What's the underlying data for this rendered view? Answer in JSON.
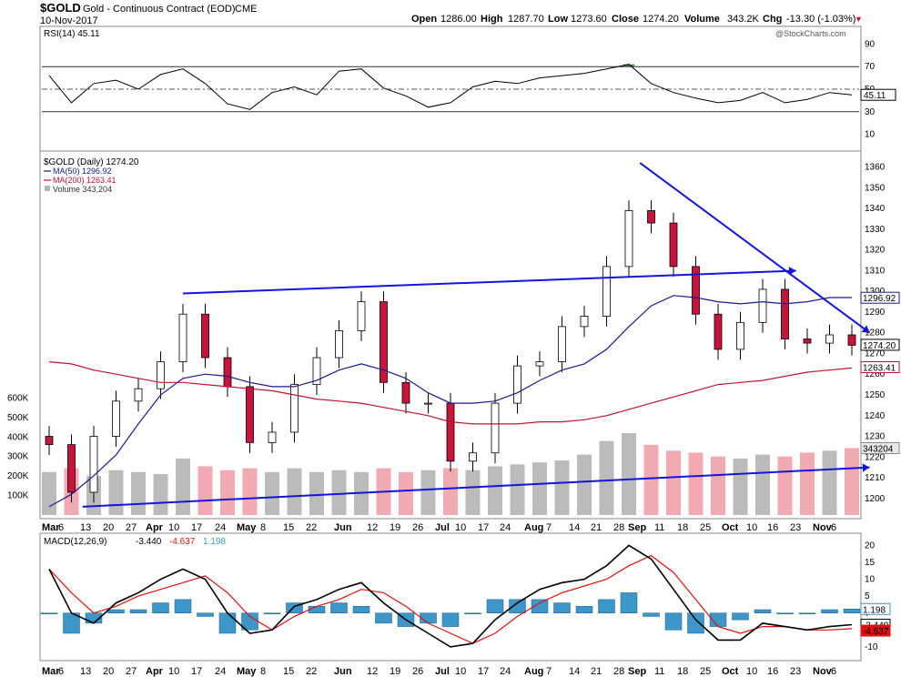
{
  "header": {
    "symbol": "$GOLD",
    "description": "Gold - Continuous Contract (EOD)",
    "exchange": "CME",
    "date": "10-Nov-2017",
    "open_label": "Open",
    "open": "1286.00",
    "high_label": "High",
    "high": "1287.70",
    "low_label": "Low",
    "low": "1273.60",
    "close_label": "Close",
    "close": "1274.20",
    "volume_label": "Volume",
    "volume": "343.2K",
    "chg_label": "Chg",
    "chg": "-13.30 (-1.03%)",
    "chg_arrow": "▼",
    "watermark": "@StockCharts.com"
  },
  "colors": {
    "ma50": "#1a1a8c",
    "ma200": "#c0142f",
    "up": "#ffffff",
    "down": "#c8143c",
    "trend": "#1414dc",
    "hist": "#3c96c8",
    "signal": "#e01010",
    "rsi_fill": "#4a7a4a",
    "vol_up": "#b4b4b4",
    "vol_down": "#f0a0aa"
  },
  "chart_data": [
    {
      "type": "line",
      "name": "rsi-panel",
      "legend": "RSI(14) 45.11",
      "last_value_label": "45.11",
      "ylim": [
        0,
        100
      ],
      "y_ticks": [
        "90",
        "70",
        "50",
        "30",
        "10"
      ],
      "reference_lines": [
        70,
        30
      ],
      "x": [
        "Mar 6",
        "Mar 13",
        "Mar 20",
        "Mar 27",
        "Apr 3",
        "Apr 10",
        "Apr 17",
        "Apr 24",
        "May 1",
        "May 8",
        "May 15",
        "May 22",
        "May 29",
        "Jun 5",
        "Jun 12",
        "Jun 19",
        "Jun 26",
        "Jul 3",
        "Jul 10",
        "Jul 17",
        "Jul 24",
        "Jul 31",
        "Aug 7",
        "Aug 14",
        "Aug 21",
        "Aug 28",
        "Sep 4",
        "Sep 11",
        "Sep 18",
        "Sep 25",
        "Oct 2",
        "Oct 9",
        "Oct 16",
        "Oct 23",
        "Oct 30",
        "Nov 6",
        "Nov 10"
      ],
      "values": [
        62,
        38,
        55,
        58,
        50,
        63,
        68,
        55,
        37,
        32,
        47,
        52,
        45,
        66,
        68,
        51,
        44,
        34,
        38,
        52,
        57,
        55,
        60,
        62,
        64,
        68,
        72,
        55,
        47,
        42,
        38,
        40,
        47,
        38,
        41,
        47,
        45
      ]
    },
    {
      "type": "candlestick",
      "name": "price-panel",
      "title": "$GOLD (Daily) 1274.20",
      "ma50_label": "MA(50) 1296.92",
      "ma200_label": "MA(200) 1263.41",
      "volume_label": "Volume 343,204",
      "ylim": [
        1192,
        1366
      ],
      "y_ticks": [
        "1360",
        "1350",
        "1340",
        "1330",
        "1320",
        "1310",
        "1300",
        "1290",
        "1280",
        "1270",
        "1260",
        "1250",
        "1240",
        "1230",
        "1220",
        "1210",
        "1200"
      ],
      "volume_ticks": [
        "600K",
        "500K",
        "400K",
        "300K",
        "200K",
        "100K"
      ],
      "volume_ylim": [
        0,
        700000
      ],
      "right_labels": {
        "ma50": "1296.92",
        "close": "1274.20",
        "ma200": "1263.41",
        "volume": "343204"
      },
      "x": [
        "Mar 6",
        "Mar 13",
        "Mar 20",
        "Mar 27",
        "Apr 3",
        "Apr 10",
        "Apr 17",
        "Apr 24",
        "May 1",
        "May 8",
        "May 15",
        "May 22",
        "May 29",
        "Jun 5",
        "Jun 12",
        "Jun 19",
        "Jun 26",
        "Jul 3",
        "Jul 10",
        "Jul 17",
        "Jul 24",
        "Jul 31",
        "Aug 7",
        "Aug 14",
        "Aug 21",
        "Aug 28",
        "Sep 4",
        "Sep 11",
        "Sep 18",
        "Sep 25",
        "Oct 2",
        "Oct 9",
        "Oct 16",
        "Oct 23",
        "Oct 30",
        "Nov 6",
        "Nov 10"
      ],
      "close": [
        1226,
        1203,
        1230,
        1247,
        1253,
        1266,
        1289,
        1268,
        1254,
        1227,
        1232,
        1255,
        1268,
        1281,
        1295,
        1256,
        1246,
        1246,
        1218,
        1222,
        1246,
        1264,
        1266,
        1283,
        1288,
        1312,
        1339,
        1333,
        1312,
        1289,
        1272,
        1285,
        1301,
        1277,
        1275,
        1279,
        1274
      ],
      "ma50": [
        1196,
        1202,
        1211,
        1221,
        1236,
        1250,
        1258,
        1260,
        1259,
        1256,
        1254,
        1254,
        1257,
        1262,
        1265,
        1262,
        1258,
        1251,
        1246,
        1246,
        1247,
        1251,
        1257,
        1262,
        1265,
        1272,
        1283,
        1293,
        1298,
        1297,
        1295,
        1294,
        1295,
        1294,
        1295,
        1297,
        1297
      ],
      "ma200": [
        1266,
        1265,
        1262,
        1260,
        1258,
        1256,
        1256,
        1255,
        1254,
        1253,
        1252,
        1250,
        1248,
        1247,
        1246,
        1244,
        1242,
        1240,
        1237,
        1236,
        1236,
        1236,
        1237,
        1237,
        1238,
        1240,
        1243,
        1246,
        1249,
        1252,
        1255,
        1256,
        1257,
        1259,
        1261,
        1262,
        1263
      ],
      "volume": [
        220000,
        240000,
        200000,
        230000,
        220000,
        210000,
        290000,
        250000,
        230000,
        240000,
        220000,
        240000,
        220000,
        230000,
        220000,
        240000,
        220000,
        230000,
        240000,
        230000,
        250000,
        260000,
        270000,
        280000,
        310000,
        380000,
        420000,
        360000,
        330000,
        320000,
        300000,
        290000,
        310000,
        300000,
        320000,
        330000,
        343204
      ],
      "annotations": [
        "resistance line Apr–Oct",
        "downtrend line from Sep high",
        "rising volume trendline"
      ]
    },
    {
      "type": "line",
      "name": "macd-panel",
      "legend_name": "MACD(12,26,9)",
      "legend_macd": "-3.440",
      "legend_signal": "-4.637",
      "legend_hist": "1.198",
      "right_labels": {
        "hist": "1.198",
        "macd": "-3.440",
        "signal": "-4.637"
      },
      "ylim": [
        -13,
        22
      ],
      "y_ticks": [
        "20",
        "15",
        "10",
        "5",
        "0",
        "-5",
        "-10"
      ],
      "x": [
        "Mar 6",
        "Mar 13",
        "Mar 20",
        "Mar 27",
        "Apr 3",
        "Apr 10",
        "Apr 17",
        "Apr 24",
        "May 1",
        "May 8",
        "May 15",
        "May 22",
        "May 29",
        "Jun 5",
        "Jun 12",
        "Jun 19",
        "Jun 26",
        "Jul 3",
        "Jul 10",
        "Jul 17",
        "Jul 24",
        "Jul 31",
        "Aug 7",
        "Aug 14",
        "Aug 21",
        "Aug 28",
        "Sep 4",
        "Sep 11",
        "Sep 18",
        "Sep 25",
        "Oct 2",
        "Oct 9",
        "Oct 16",
        "Oct 23",
        "Oct 30",
        "Nov 6",
        "Nov 10"
      ],
      "macd": [
        13,
        0,
        -3,
        3,
        6,
        10,
        13,
        10,
        0,
        -6,
        -5,
        2,
        4,
        7,
        9,
        3,
        -2,
        -6,
        -10,
        -9,
        -2,
        3,
        7,
        9,
        10,
        14,
        20,
        16,
        7,
        -2,
        -8,
        -8,
        -3,
        -4,
        -5,
        -4,
        -3.44
      ],
      "signal": [
        13,
        6,
        0,
        2,
        5,
        7,
        9,
        11,
        6,
        -1,
        -5,
        -1,
        2,
        4,
        7,
        6,
        2,
        -3,
        -6,
        -9,
        -6,
        -1,
        3,
        6,
        8,
        10,
        14,
        17,
        12,
        4,
        -4,
        -6,
        -4,
        -4,
        -5,
        -5,
        -4.64
      ],
      "histogram": [
        0,
        -6,
        -3,
        1,
        1,
        3,
        4,
        -1,
        -6,
        -5,
        0,
        3,
        2,
        3,
        2,
        -3,
        -4,
        -3,
        -4,
        0,
        4,
        4,
        4,
        3,
        2,
        4,
        6,
        -1,
        -5,
        -6,
        -4,
        -2,
        1,
        0,
        0,
        1,
        1.198
      ]
    }
  ],
  "x_axis_labels": [
    {
      "label": "Mar",
      "bold": true
    },
    {
      "label": "6",
      "bold": false
    },
    {
      "label": "13",
      "bold": false
    },
    {
      "label": "20",
      "bold": false
    },
    {
      "label": "27",
      "bold": false
    },
    {
      "label": "Apr",
      "bold": true
    },
    {
      "label": "10",
      "bold": false
    },
    {
      "label": "17",
      "bold": false
    },
    {
      "label": "24",
      "bold": false
    },
    {
      "label": "May",
      "bold": true
    },
    {
      "label": "8",
      "bold": false
    },
    {
      "label": "15",
      "bold": false
    },
    {
      "label": "22",
      "bold": false
    },
    {
      "label": "Jun",
      "bold": true
    },
    {
      "label": "12",
      "bold": false
    },
    {
      "label": "19",
      "bold": false
    },
    {
      "label": "26",
      "bold": false
    },
    {
      "label": "Jul",
      "bold": true
    },
    {
      "label": "10",
      "bold": false
    },
    {
      "label": "17",
      "bold": false
    },
    {
      "label": "24",
      "bold": false
    },
    {
      "label": "Aug",
      "bold": true
    },
    {
      "label": "7",
      "bold": false
    },
    {
      "label": "14",
      "bold": false
    },
    {
      "label": "21",
      "bold": false
    },
    {
      "label": "28",
      "bold": false
    },
    {
      "label": "Sep",
      "bold": true
    },
    {
      "label": "11",
      "bold": false
    },
    {
      "label": "18",
      "bold": false
    },
    {
      "label": "25",
      "bold": false
    },
    {
      "label": "Oct",
      "bold": true
    },
    {
      "label": "10",
      "bold": false
    },
    {
      "label": "16",
      "bold": false
    },
    {
      "label": "23",
      "bold": false
    },
    {
      "label": "Nov",
      "bold": true
    },
    {
      "label": "6",
      "bold": false
    }
  ]
}
